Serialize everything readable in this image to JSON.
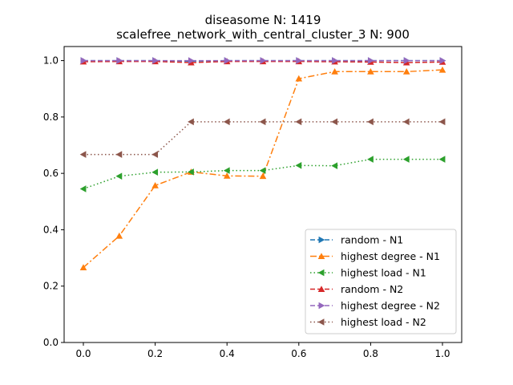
{
  "chart_data": {
    "type": "line",
    "title": "diseasome N: 1419",
    "subtitle": "scalefree_network_with_central_cluster_3 N: 900",
    "xlabel": "",
    "ylabel": "",
    "xlim": [
      0.0,
      1.0
    ],
    "ylim": [
      0.0,
      1.0
    ],
    "grid": false,
    "legend_position": "bottom-right",
    "x": [
      0.0,
      0.1,
      0.2,
      0.3,
      0.4,
      0.5,
      0.6,
      0.7,
      0.8,
      0.9,
      1.0
    ],
    "x_ticks": [
      "0.0",
      "0.2",
      "0.4",
      "0.6",
      "0.8",
      "1.0"
    ],
    "y_ticks": [
      "0.0",
      "0.2",
      "0.4",
      "0.6",
      "0.8",
      "1.0"
    ],
    "series": [
      {
        "name": "random - N1",
        "color": "#1f77b4",
        "dash": "dashed",
        "marker": "triangle-right",
        "values": [
          1.0,
          1.0,
          1.0,
          0.998,
          1.0,
          1.0,
          1.0,
          1.0,
          1.0,
          1.0,
          1.0
        ]
      },
      {
        "name": "highest degree - N1",
        "color": "#ff7f0e",
        "dash": "dashdot",
        "marker": "triangle-up",
        "values": [
          0.266,
          0.378,
          0.557,
          0.605,
          0.591,
          0.59,
          0.936,
          0.961,
          0.961,
          0.961,
          0.967
        ]
      },
      {
        "name": "highest load - N1",
        "color": "#2ca02c",
        "dash": "dotted",
        "marker": "triangle-left",
        "values": [
          0.545,
          0.59,
          0.604,
          0.605,
          0.61,
          0.61,
          0.628,
          0.627,
          0.65,
          0.65,
          0.65
        ]
      },
      {
        "name": "random - N2",
        "color": "#d62728",
        "dash": "dashed",
        "marker": "triangle-up",
        "values": [
          0.996,
          0.997,
          0.997,
          0.993,
          0.997,
          0.997,
          0.997,
          0.996,
          0.995,
          0.993,
          0.995
        ]
      },
      {
        "name": "highest degree - N2",
        "color": "#9467bd",
        "dash": "dashed",
        "marker": "triangle-right",
        "values": [
          1.0,
          1.0,
          1.0,
          1.0,
          1.0,
          1.0,
          1.0,
          1.0,
          1.0,
          1.0,
          1.0
        ]
      },
      {
        "name": "highest load - N2",
        "color": "#8c564b",
        "dash": "dotted",
        "marker": "triangle-left",
        "values": [
          0.667,
          0.667,
          0.667,
          0.783,
          0.783,
          0.783,
          0.783,
          0.783,
          0.783,
          0.783,
          0.783
        ]
      }
    ]
  }
}
